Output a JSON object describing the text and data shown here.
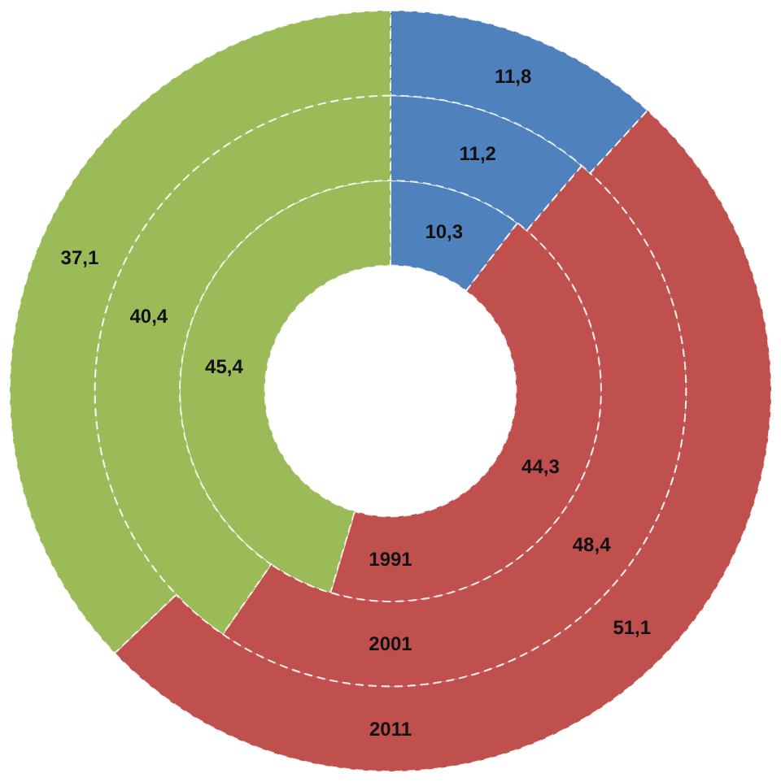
{
  "chart_data": {
    "type": "donut",
    "categories": [
      null,
      null,
      null
    ],
    "colors": [
      "#4f81bd",
      "#c0504d",
      "#9bbb59"
    ],
    "series": [
      {
        "name": "1991",
        "values": [
          10.3,
          44.3,
          45.4
        ],
        "value_labels": [
          "10,3",
          "44,3",
          "45,4"
        ]
      },
      {
        "name": "2001",
        "values": [
          11.2,
          48.4,
          40.4
        ],
        "value_labels": [
          "11,2",
          "48,4",
          "40,4"
        ]
      },
      {
        "name": "2011",
        "values": [
          11.8,
          51.1,
          37.1
        ],
        "value_labels": [
          "11,8",
          "51,1",
          "37,1"
        ]
      }
    ]
  }
}
